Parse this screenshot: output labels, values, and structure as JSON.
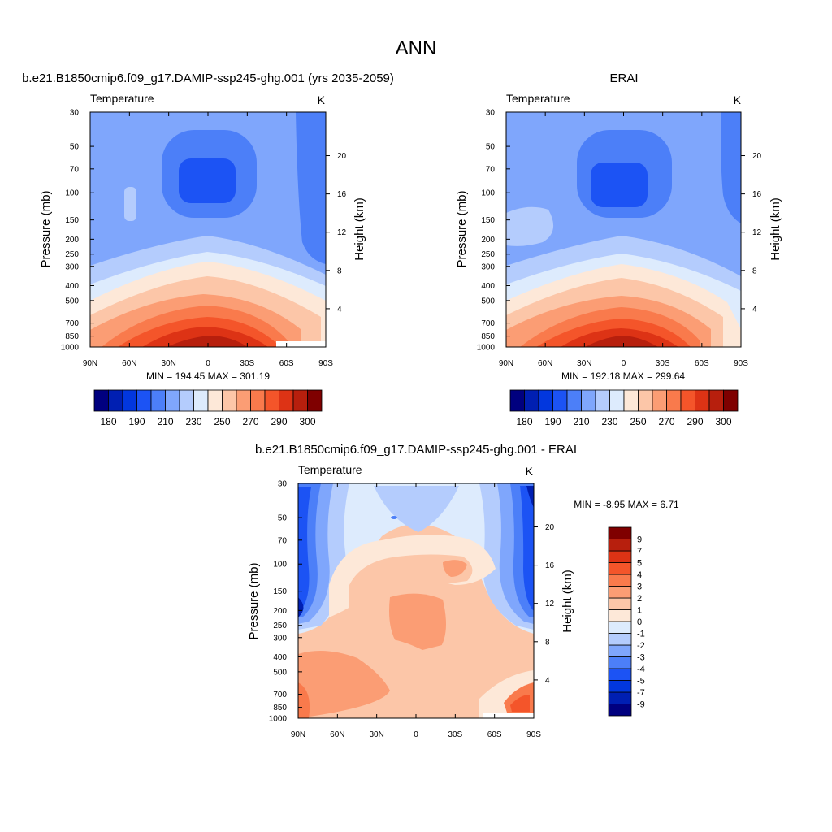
{
  "page": {
    "title": "ANN",
    "panel1_title": "b.e21.B1850cmip6.f09_g17.DAMIP-ssp245-ghg.001 (yrs 2035-2059)",
    "panel2_title": "ERAI",
    "panel3_title": "b.e21.B1850cmip6.f09_g17.DAMIP-ssp245-ghg.001 - ERAI"
  },
  "chart_data": [
    {
      "type": "heatmap",
      "subtitle_left": "Temperature",
      "subtitle_right": "K",
      "ylabel": "Pressure (mb)",
      "ylabel_right": "Height (km)",
      "x_ticks": [
        "90N",
        "60N",
        "30N",
        "0",
        "30S",
        "60S",
        "90S"
      ],
      "y_ticks": [
        "30",
        "50",
        "70",
        "100",
        "150",
        "200",
        "250",
        "300",
        "400",
        "500",
        "700",
        "850",
        "1000"
      ],
      "height_ticks": [
        "20",
        "16",
        "12",
        "8",
        "4"
      ],
      "stats": "MIN = 194.45  MAX = 301.19",
      "colorbar": {
        "levels": [
          180,
          185,
          190,
          200,
          210,
          220,
          230,
          240,
          250,
          260,
          270,
          280,
          290,
          295,
          300
        ],
        "labels": [
          "180",
          "190",
          "210",
          "230",
          "250",
          "270",
          "290",
          "300"
        ],
        "colors": [
          "#00007f",
          "#001fb2",
          "#0237de",
          "#1c53f4",
          "#4c7ff8",
          "#7fa6fc",
          "#b4ccfd",
          "#ddebfd",
          "#fde8d8",
          "#fcc6a8",
          "#fb9d74",
          "#f97a4c",
          "#f4552a",
          "#dd3315",
          "#b71f0d",
          "#7f0000"
        ]
      },
      "ylim": [
        1000,
        30
      ]
    },
    {
      "type": "heatmap",
      "subtitle_left": "Temperature",
      "subtitle_right": "K",
      "ylabel": "Pressure (mb)",
      "ylabel_right": "Height (km)",
      "x_ticks": [
        "90N",
        "60N",
        "30N",
        "0",
        "30S",
        "60S",
        "90S"
      ],
      "y_ticks": [
        "30",
        "50",
        "70",
        "100",
        "150",
        "200",
        "250",
        "300",
        "400",
        "500",
        "700",
        "850",
        "1000"
      ],
      "height_ticks": [
        "20",
        "16",
        "12",
        "8",
        "4"
      ],
      "stats": "MIN = 192.18  MAX = 299.64",
      "colorbar": {
        "levels": [
          180,
          185,
          190,
          200,
          210,
          220,
          230,
          240,
          250,
          260,
          270,
          280,
          290,
          295,
          300
        ],
        "labels": [
          "180",
          "190",
          "210",
          "230",
          "250",
          "270",
          "290",
          "300"
        ],
        "colors": [
          "#00007f",
          "#001fb2",
          "#0237de",
          "#1c53f4",
          "#4c7ff8",
          "#7fa6fc",
          "#b4ccfd",
          "#ddebfd",
          "#fde8d8",
          "#fcc6a8",
          "#fb9d74",
          "#f97a4c",
          "#f4552a",
          "#dd3315",
          "#b71f0d",
          "#7f0000"
        ]
      },
      "ylim": [
        1000,
        30
      ]
    },
    {
      "type": "heatmap",
      "subtitle_left": "Temperature",
      "subtitle_right": "K",
      "ylabel": "Pressure (mb)",
      "ylabel_right": "Height (km)",
      "x_ticks": [
        "90N",
        "60N",
        "30N",
        "0",
        "30S",
        "60S",
        "90S"
      ],
      "y_ticks": [
        "30",
        "50",
        "70",
        "100",
        "150",
        "200",
        "250",
        "300",
        "400",
        "500",
        "700",
        "850",
        "1000"
      ],
      "height_ticks": [
        "20",
        "16",
        "12",
        "8",
        "4"
      ],
      "stats": "MIN =  -8.95  MAX =   6.71",
      "colorbar": {
        "levels": [
          -9,
          -7,
          -5,
          -4,
          -3,
          -2,
          -1,
          0,
          1,
          2,
          3,
          4,
          5,
          7,
          9
        ],
        "labels": [
          "-9",
          "-7",
          "-5",
          "-4",
          "-3",
          "-2",
          "-1",
          "0",
          "1",
          "2",
          "3",
          "4",
          "5",
          "7",
          "9"
        ],
        "colors": [
          "#00007f",
          "#001fb2",
          "#0237de",
          "#1c53f4",
          "#4c7ff8",
          "#7fa6fc",
          "#b4ccfd",
          "#ddebfd",
          "#fde8d8",
          "#fcc6a8",
          "#fb9d74",
          "#f97a4c",
          "#f4552a",
          "#dd3315",
          "#b71f0d",
          "#7f0000"
        ]
      },
      "ylim": [
        1000,
        30
      ]
    }
  ]
}
